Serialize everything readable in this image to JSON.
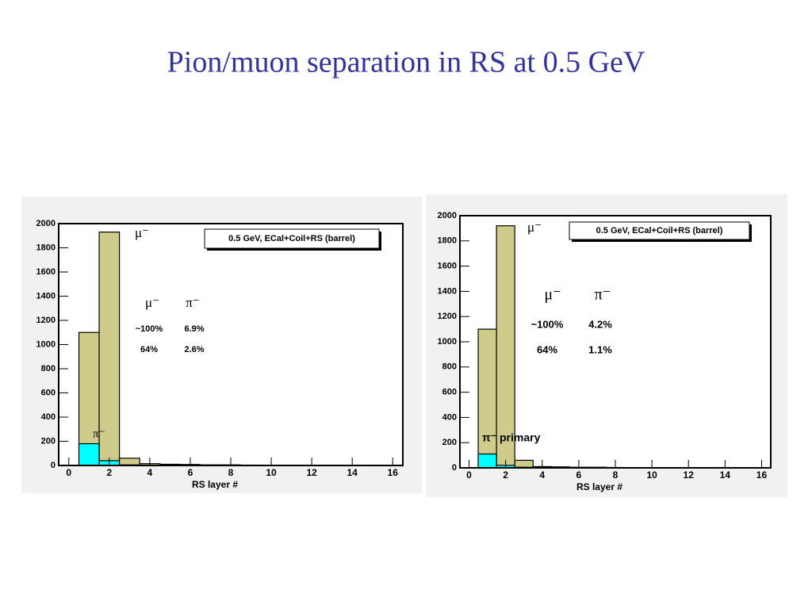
{
  "title": "Pion/muon separation in RS at 0.5 GeV",
  "chart_data": [
    {
      "type": "histogram",
      "bins": [
        0.5,
        1.5,
        2.5,
        3.5,
        4.5,
        5.5,
        6.5,
        7.5,
        8.5,
        9.5,
        10.5,
        11.5,
        12.5,
        13.5,
        14.5,
        15.5,
        16.5
      ],
      "series": [
        {
          "name": "μ⁻",
          "color": "#cfcb8a",
          "values": [
            1100,
            1930,
            60,
            15,
            10,
            8,
            5,
            5,
            3,
            2,
            1,
            1,
            0,
            0,
            0,
            0
          ]
        },
        {
          "name": "π⁻",
          "color": "#00ffff",
          "values": [
            180,
            40,
            5,
            3,
            2,
            1,
            1,
            0,
            0,
            0,
            0,
            0,
            0,
            0,
            0,
            0
          ]
        }
      ],
      "xlim": [
        -0.5,
        16.5
      ],
      "ylim": [
        0,
        2000
      ],
      "xticks": [
        0,
        2,
        4,
        6,
        8,
        10,
        12,
        14,
        16
      ],
      "yticks": [
        0,
        200,
        400,
        600,
        800,
        1000,
        1200,
        1400,
        1600,
        1800,
        2000
      ],
      "xlabel": "RS layer #",
      "info_box": "0.5 GeV, ECal+Coil+RS (barrel)",
      "table": {
        "header": [
          "μ⁻",
          "π⁻"
        ],
        "rows": [
          [
            "~100%",
            "6.9%"
          ],
          [
            "64%",
            "2.6%"
          ]
        ]
      }
    },
    {
      "type": "histogram",
      "bins": [
        0.5,
        1.5,
        2.5,
        3.5,
        4.5,
        5.5,
        6.5,
        7.5,
        8.5,
        9.5,
        10.5,
        11.5,
        12.5,
        13.5,
        14.5,
        15.5,
        16.5
      ],
      "series": [
        {
          "name": "μ⁻",
          "color": "#cfcb8a",
          "values": [
            1100,
            1920,
            60,
            10,
            8,
            5,
            5,
            3,
            2,
            2,
            1,
            1,
            0,
            0,
            0,
            0
          ]
        },
        {
          "name": "π⁻ primary",
          "color": "#00ffff",
          "values": [
            110,
            20,
            5,
            3,
            2,
            1,
            0,
            0,
            0,
            0,
            0,
            0,
            0,
            0,
            0,
            0
          ]
        }
      ],
      "xlim": [
        -0.5,
        16.5
      ],
      "ylim": [
        0,
        2000
      ],
      "xticks": [
        0,
        2,
        4,
        6,
        8,
        10,
        12,
        14,
        16
      ],
      "yticks": [
        0,
        200,
        400,
        600,
        800,
        1000,
        1200,
        1400,
        1600,
        1800,
        2000
      ],
      "xlabel": "RS layer #",
      "info_box": "0.5 GeV, ECal+Coil+RS (barrel)",
      "table": {
        "header": [
          "μ⁻",
          "π⁻"
        ],
        "rows": [
          [
            "~100%",
            "4.2%"
          ],
          [
            "64%",
            "1.1%"
          ]
        ]
      }
    }
  ]
}
